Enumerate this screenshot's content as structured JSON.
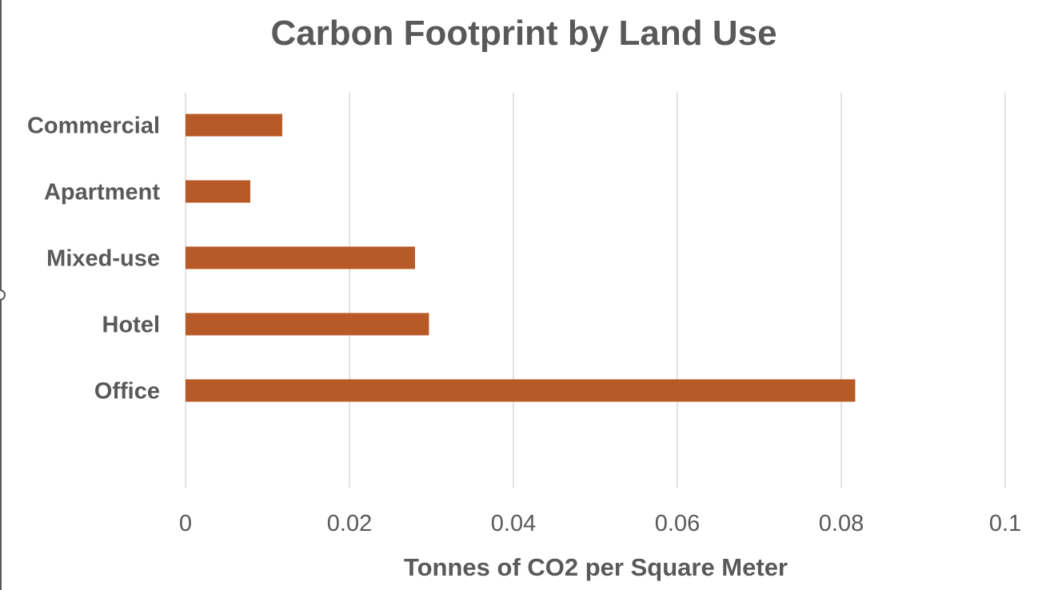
{
  "chart_data": {
    "type": "bar",
    "orientation": "horizontal",
    "title": "Carbon Footprint by Land Use",
    "xlabel": "Tonnes of CO2 per Square Meter",
    "ylabel": "",
    "categories": [
      "Commercial",
      "Apartment",
      "Mixed-use",
      "Hotel",
      "Office"
    ],
    "values": [
      0.0118,
      0.0079,
      0.028,
      0.0297,
      0.0817
    ],
    "xlim": [
      0,
      0.1
    ],
    "xticks": [
      "0",
      "0.02",
      "0.04",
      "0.06",
      "0.08",
      "0.1"
    ],
    "grid": true,
    "legend": "none",
    "bar_color": "#b85a27"
  }
}
